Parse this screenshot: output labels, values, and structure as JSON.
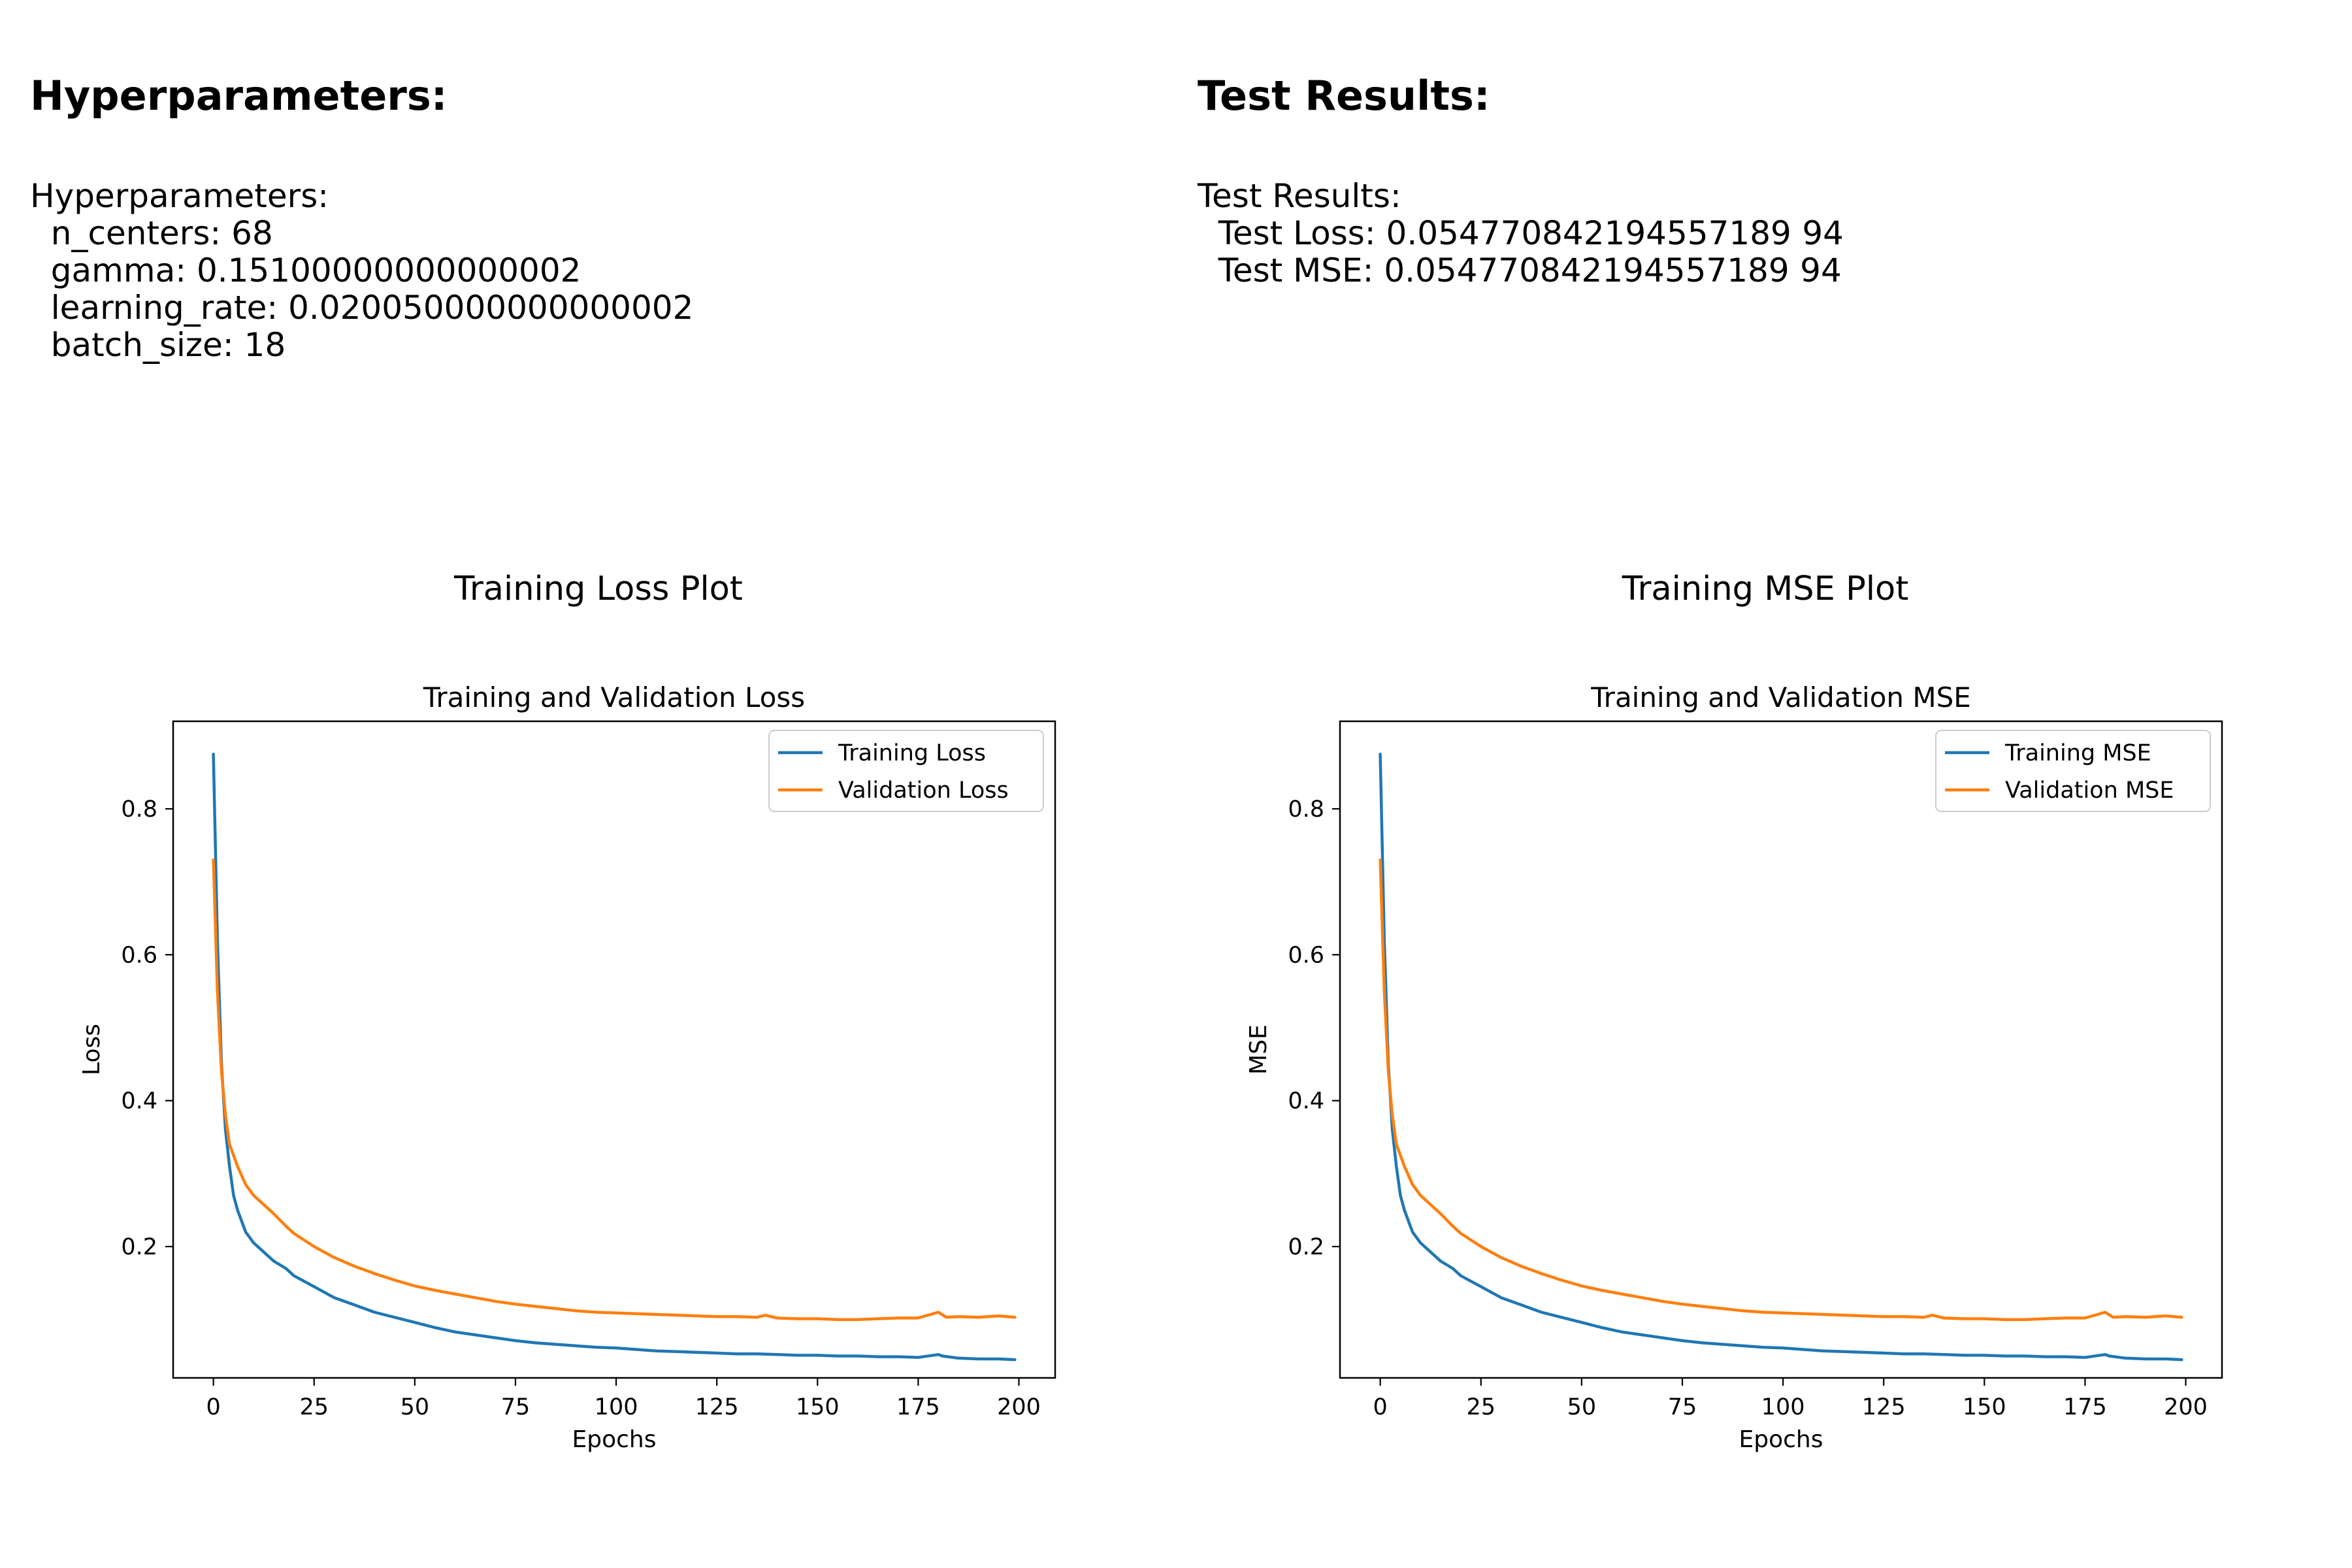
{
  "hyper": {
    "heading": "Hyperparameters:",
    "label": "Hyperparameters:",
    "lines": [
      "  n_centers: 68",
      "  gamma: 0.15100000000000002",
      "  learning_rate: 0.020050000000000002",
      "  batch_size: 18"
    ]
  },
  "test": {
    "heading": "Test Results:",
    "label": "Test Results:",
    "lines": [
      "  Test Loss: 0.054770842194557189 94",
      "  Test MSE: 0.054770842194557189 94"
    ]
  },
  "plots": [
    {
      "panel_title": "Training Loss Plot"
    },
    {
      "panel_title": "Training MSE Plot"
    }
  ],
  "colors": {
    "training": "#1f77b4",
    "validation": "#ff7f0e"
  },
  "chart_data": [
    {
      "type": "line",
      "title": "Training and Validation Loss",
      "xlabel": "Epochs",
      "ylabel": "Loss",
      "xlim": [
        -10,
        209
      ],
      "ylim": [
        0.02,
        0.92
      ],
      "xticks": [
        0,
        25,
        50,
        75,
        100,
        125,
        150,
        175,
        200
      ],
      "yticks": [
        0.2,
        0.4,
        0.6,
        0.8
      ],
      "legend": "top-right",
      "grid": false,
      "series": [
        {
          "name": "Training Loss",
          "color": "#1f77b4",
          "x": [
            0,
            1,
            2,
            3,
            4,
            5,
            6,
            8,
            10,
            12,
            15,
            18,
            20,
            25,
            30,
            35,
            40,
            45,
            50,
            55,
            60,
            65,
            70,
            75,
            80,
            85,
            90,
            95,
            100,
            105,
            110,
            115,
            120,
            125,
            130,
            135,
            140,
            145,
            150,
            155,
            160,
            165,
            170,
            175,
            180,
            181,
            185,
            190,
            195,
            199
          ],
          "y": [
            0.875,
            0.62,
            0.45,
            0.36,
            0.31,
            0.27,
            0.25,
            0.22,
            0.205,
            0.195,
            0.18,
            0.17,
            0.16,
            0.145,
            0.13,
            0.12,
            0.11,
            0.103,
            0.096,
            0.089,
            0.083,
            0.079,
            0.075,
            0.071,
            0.068,
            0.066,
            0.064,
            0.062,
            0.061,
            0.059,
            0.057,
            0.056,
            0.055,
            0.054,
            0.053,
            0.053,
            0.052,
            0.051,
            0.051,
            0.05,
            0.05,
            0.049,
            0.049,
            0.048,
            0.052,
            0.05,
            0.047,
            0.046,
            0.046,
            0.045
          ]
        },
        {
          "name": "Validation Loss",
          "color": "#ff7f0e",
          "x": [
            0,
            1,
            2,
            3,
            4,
            5,
            6,
            8,
            10,
            12,
            15,
            18,
            20,
            25,
            30,
            35,
            40,
            45,
            50,
            55,
            60,
            65,
            70,
            75,
            80,
            85,
            90,
            95,
            100,
            105,
            110,
            115,
            120,
            125,
            130,
            135,
            137,
            140,
            145,
            150,
            155,
            160,
            165,
            170,
            175,
            180,
            182,
            185,
            190,
            195,
            199
          ],
          "y": [
            0.73,
            0.55,
            0.44,
            0.38,
            0.34,
            0.325,
            0.31,
            0.285,
            0.27,
            0.26,
            0.245,
            0.228,
            0.218,
            0.2,
            0.185,
            0.173,
            0.163,
            0.154,
            0.146,
            0.14,
            0.135,
            0.13,
            0.125,
            0.121,
            0.118,
            0.115,
            0.112,
            0.11,
            0.109,
            0.108,
            0.107,
            0.106,
            0.105,
            0.104,
            0.104,
            0.103,
            0.106,
            0.102,
            0.101,
            0.101,
            0.1,
            0.1,
            0.101,
            0.102,
            0.102,
            0.11,
            0.103,
            0.104,
            0.103,
            0.105,
            0.103
          ]
        }
      ]
    },
    {
      "type": "line",
      "title": "Training and Validation MSE",
      "xlabel": "Epochs",
      "ylabel": "MSE",
      "xlim": [
        -10,
        209
      ],
      "ylim": [
        0.02,
        0.92
      ],
      "xticks": [
        0,
        25,
        50,
        75,
        100,
        125,
        150,
        175,
        200
      ],
      "yticks": [
        0.2,
        0.4,
        0.6,
        0.8
      ],
      "legend": "top-right",
      "grid": false,
      "series": [
        {
          "name": "Training MSE",
          "color": "#1f77b4",
          "x": [
            0,
            1,
            2,
            3,
            4,
            5,
            6,
            8,
            10,
            12,
            15,
            18,
            20,
            25,
            30,
            35,
            40,
            45,
            50,
            55,
            60,
            65,
            70,
            75,
            80,
            85,
            90,
            95,
            100,
            105,
            110,
            115,
            120,
            125,
            130,
            135,
            140,
            145,
            150,
            155,
            160,
            165,
            170,
            175,
            180,
            181,
            185,
            190,
            195,
            199
          ],
          "y": [
            0.875,
            0.62,
            0.45,
            0.36,
            0.31,
            0.27,
            0.25,
            0.22,
            0.205,
            0.195,
            0.18,
            0.17,
            0.16,
            0.145,
            0.13,
            0.12,
            0.11,
            0.103,
            0.096,
            0.089,
            0.083,
            0.079,
            0.075,
            0.071,
            0.068,
            0.066,
            0.064,
            0.062,
            0.061,
            0.059,
            0.057,
            0.056,
            0.055,
            0.054,
            0.053,
            0.053,
            0.052,
            0.051,
            0.051,
            0.05,
            0.05,
            0.049,
            0.049,
            0.048,
            0.052,
            0.05,
            0.047,
            0.046,
            0.046,
            0.045
          ]
        },
        {
          "name": "Validation MSE",
          "color": "#ff7f0e",
          "x": [
            0,
            1,
            2,
            3,
            4,
            5,
            6,
            8,
            10,
            12,
            15,
            18,
            20,
            25,
            30,
            35,
            40,
            45,
            50,
            55,
            60,
            65,
            70,
            75,
            80,
            85,
            90,
            95,
            100,
            105,
            110,
            115,
            120,
            125,
            130,
            135,
            137,
            140,
            145,
            150,
            155,
            160,
            165,
            170,
            175,
            180,
            182,
            185,
            190,
            195,
            199
          ],
          "y": [
            0.73,
            0.55,
            0.44,
            0.38,
            0.34,
            0.325,
            0.31,
            0.285,
            0.27,
            0.26,
            0.245,
            0.228,
            0.218,
            0.2,
            0.185,
            0.173,
            0.163,
            0.154,
            0.146,
            0.14,
            0.135,
            0.13,
            0.125,
            0.121,
            0.118,
            0.115,
            0.112,
            0.11,
            0.109,
            0.108,
            0.107,
            0.106,
            0.105,
            0.104,
            0.104,
            0.103,
            0.106,
            0.102,
            0.101,
            0.101,
            0.1,
            0.1,
            0.101,
            0.102,
            0.102,
            0.11,
            0.103,
            0.104,
            0.103,
            0.105,
            0.103
          ]
        }
      ]
    }
  ]
}
